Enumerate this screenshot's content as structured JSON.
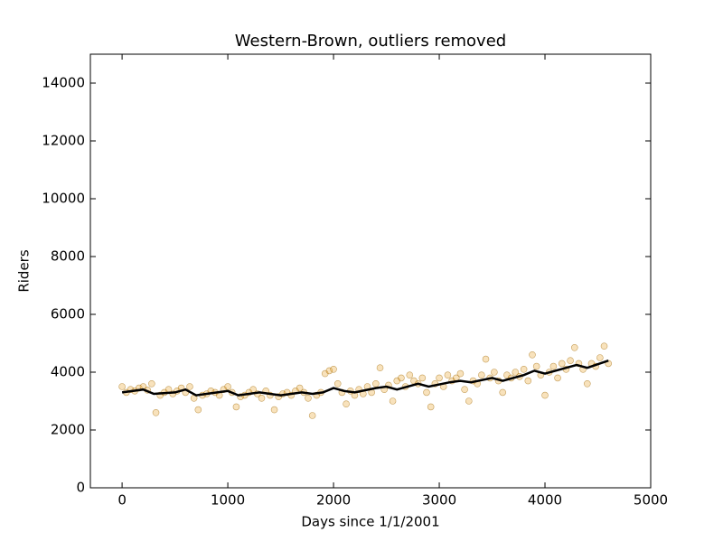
{
  "chart_data": {
    "type": "scatter",
    "title": "Western-Brown, outliers removed",
    "xlabel": "Days since 1/1/2001",
    "ylabel": "Riders",
    "xlim": [
      -300,
      5000
    ],
    "xticks": [
      0,
      1000,
      2000,
      3000,
      4000,
      5000
    ],
    "ylim": [
      0,
      15000
    ],
    "yticks": [
      0,
      2000,
      4000,
      6000,
      8000,
      10000,
      12000,
      14000
    ],
    "color": "#e8a020",
    "x": [
      0,
      40,
      80,
      120,
      160,
      200,
      240,
      280,
      320,
      360,
      400,
      440,
      480,
      520,
      560,
      600,
      640,
      680,
      720,
      760,
      800,
      840,
      880,
      920,
      960,
      1000,
      1040,
      1080,
      1120,
      1160,
      1200,
      1240,
      1280,
      1320,
      1360,
      1400,
      1440,
      1480,
      1520,
      1560,
      1600,
      1640,
      1680,
      1720,
      1760,
      1800,
      1840,
      1880,
      1920,
      1960,
      2000,
      2040,
      2080,
      2120,
      2160,
      2200,
      2240,
      2280,
      2320,
      2360,
      2400,
      2440,
      2480,
      2520,
      2560,
      2600,
      2640,
      2680,
      2720,
      2760,
      2800,
      2840,
      2880,
      2920,
      2960,
      3000,
      3040,
      3080,
      3120,
      3160,
      3200,
      3240,
      3280,
      3320,
      3360,
      3400,
      3440,
      3480,
      3520,
      3560,
      3600,
      3640,
      3680,
      3720,
      3760,
      3800,
      3840,
      3880,
      3920,
      3960,
      4000,
      4040,
      4080,
      4120,
      4160,
      4200,
      4240,
      4280,
      4320,
      4360,
      4400,
      4440,
      4480,
      4520,
      4560,
      4600
    ],
    "values": [
      3500,
      3300,
      3400,
      3350,
      3450,
      3500,
      3380,
      3600,
      2600,
      3200,
      3300,
      3400,
      3250,
      3350,
      3450,
      3300,
      3500,
      3100,
      2700,
      3200,
      3250,
      3350,
      3300,
      3200,
      3400,
      3500,
      3300,
      2800,
      3150,
      3200,
      3300,
      3400,
      3250,
      3100,
      3350,
      3200,
      2700,
      3150,
      3250,
      3300,
      3200,
      3350,
      3450,
      3300,
      3100,
      2500,
      3200,
      3300,
      3950,
      4050,
      4100,
      3600,
      3300,
      2900,
      3350,
      3200,
      3400,
      3250,
      3500,
      3300,
      3600,
      4150,
      3400,
      3550,
      3000,
      3700,
      3800,
      3500,
      3900,
      3700,
      3600,
      3800,
      3300,
      2800,
      3600,
      3800,
      3500,
      3900,
      3700,
      3800,
      3950,
      3400,
      3000,
      3700,
      3600,
      3900,
      4450,
      3800,
      4000,
      3700,
      3300,
      3900,
      3800,
      4000,
      3850,
      4100,
      3700,
      4600,
      4200,
      3900,
      3200,
      4000,
      4200,
      3800,
      4300,
      4100,
      4400,
      4850,
      4300,
      4100,
      3600,
      4300,
      4200,
      4500,
      4900,
      4300
    ],
    "trend": {
      "color": "#000000",
      "x": [
        0,
        200,
        300,
        500,
        600,
        700,
        900,
        1000,
        1100,
        1300,
        1400,
        1500,
        1700,
        1800,
        1900,
        2000,
        2100,
        2200,
        2400,
        2500,
        2600,
        2800,
        2900,
        3100,
        3200,
        3300,
        3500,
        3600,
        3800,
        3900,
        4000,
        4200,
        4300,
        4400,
        4600
      ],
      "values": [
        3300,
        3400,
        3250,
        3300,
        3400,
        3200,
        3300,
        3350,
        3200,
        3300,
        3250,
        3200,
        3300,
        3250,
        3300,
        3450,
        3350,
        3300,
        3450,
        3500,
        3400,
        3600,
        3500,
        3650,
        3700,
        3650,
        3800,
        3700,
        3900,
        4050,
        3950,
        4150,
        4250,
        4150,
        4400
      ]
    }
  }
}
